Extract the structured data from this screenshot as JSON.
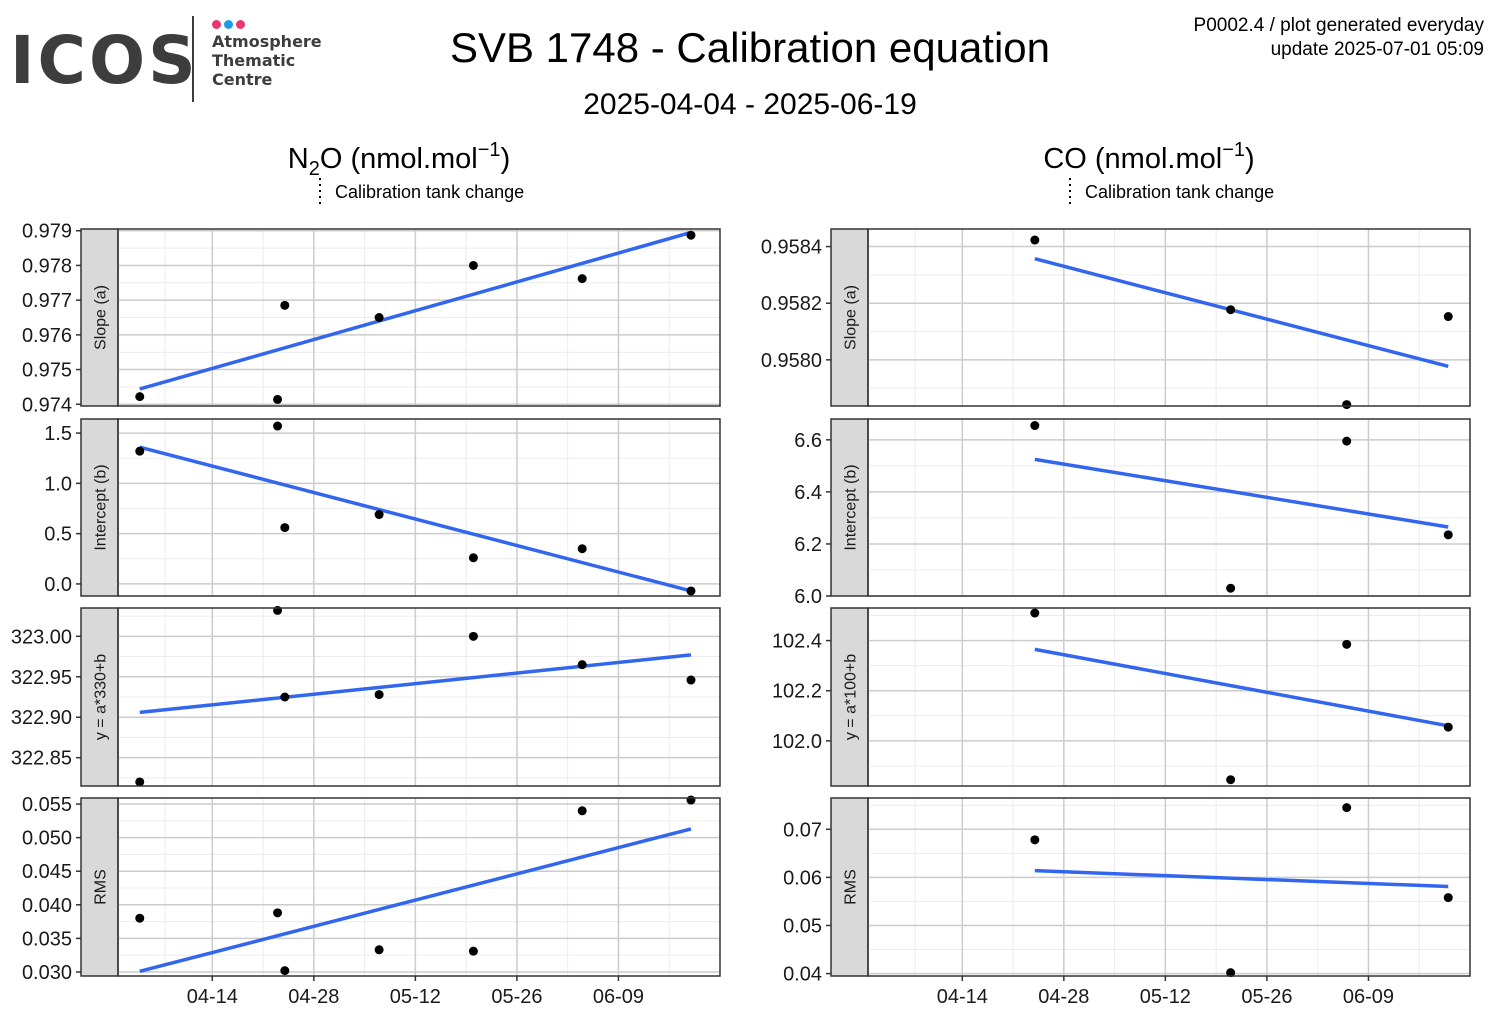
{
  "logo": {
    "wordmark": "ICOS",
    "lines": [
      "Atmosphere",
      "Thematic",
      "Centre"
    ],
    "dot_colors": [
      "#e8386d",
      "#1c9ce8",
      "#e8386d"
    ]
  },
  "header": {
    "title": "SVB 1748 - Calibration equation",
    "subtitle": "2025-04-04 - 2025-06-19",
    "meta_line1": "P0002.4 / plot generated everyday",
    "meta_line2": "update  2025-07-01 05:09"
  },
  "colors": {
    "fit_line": "#3366ee",
    "points": "#000000",
    "strip_bg": "#d9d9d9",
    "grid_major": "#cccccc",
    "grid_minor": "#ececec"
  },
  "chart_data": [
    {
      "type": "scatter",
      "column_title": "N2O (nmol.mol-1)",
      "column_title_parts": {
        "species": "N",
        "sub": "2",
        "rest": "O (nmol.mol",
        "sup": "−1",
        "close": ")"
      },
      "legend": "Calibration tank change",
      "x_axis": {
        "range": [
          "2025-04-01",
          "2025-06-23"
        ],
        "ticks": [
          "2025-04-14",
          "2025-04-28",
          "2025-05-12",
          "2025-05-26",
          "2025-06-09"
        ],
        "tick_labels": [
          "04-14",
          "04-28",
          "05-12",
          "05-26",
          "06-09"
        ]
      },
      "panels": [
        {
          "strip": "Slope (a)",
          "ylim": [
            0.97395,
            0.97905
          ],
          "yticks": [
            0.974,
            0.975,
            0.976,
            0.977,
            0.978,
            0.979
          ],
          "ytick_labels": [
            "0.974",
            "0.975",
            "0.976",
            "0.977",
            "0.978",
            "0.979"
          ],
          "points": [
            {
              "x": "2025-04-04",
              "y": 0.97422
            },
            {
              "x": "2025-04-23",
              "y": 0.97414
            },
            {
              "x": "2025-04-24",
              "y": 0.97685
            },
            {
              "x": "2025-05-07",
              "y": 0.9765
            },
            {
              "x": "2025-05-20",
              "y": 0.978
            },
            {
              "x": "2025-06-04",
              "y": 0.97762
            },
            {
              "x": "2025-06-19",
              "y": 0.97887
            }
          ],
          "fit": [
            {
              "x": "2025-04-04",
              "y": 0.97444
            },
            {
              "x": "2025-06-19",
              "y": 0.97895
            }
          ]
        },
        {
          "strip": "Intercept (b)",
          "ylim": [
            -0.12,
            1.64
          ],
          "yticks": [
            0.0,
            0.5,
            1.0,
            1.5
          ],
          "ytick_labels": [
            "0.0",
            "0.5",
            "1.0",
            "1.5"
          ],
          "points": [
            {
              "x": "2025-04-04",
              "y": 1.32
            },
            {
              "x": "2025-04-23",
              "y": 1.57
            },
            {
              "x": "2025-04-24",
              "y": 0.56
            },
            {
              "x": "2025-05-07",
              "y": 0.69
            },
            {
              "x": "2025-05-20",
              "y": 0.26
            },
            {
              "x": "2025-06-04",
              "y": 0.35
            },
            {
              "x": "2025-06-19",
              "y": -0.07
            }
          ],
          "fit": [
            {
              "x": "2025-04-04",
              "y": 1.36
            },
            {
              "x": "2025-06-19",
              "y": -0.07
            }
          ]
        },
        {
          "strip": "y = a*330+b",
          "ylim": [
            322.815,
            323.035
          ],
          "yticks": [
            322.85,
            322.9,
            322.95,
            323.0
          ],
          "ytick_labels": [
            "322.85",
            "322.90",
            "322.95",
            "323.00"
          ],
          "points": [
            {
              "x": "2025-04-04",
              "y": 322.82
            },
            {
              "x": "2025-04-23",
              "y": 323.032
            },
            {
              "x": "2025-04-24",
              "y": 322.925
            },
            {
              "x": "2025-05-07",
              "y": 322.928
            },
            {
              "x": "2025-05-20",
              "y": 323.0
            },
            {
              "x": "2025-06-04",
              "y": 322.965
            },
            {
              "x": "2025-06-19",
              "y": 322.946
            }
          ],
          "fit": [
            {
              "x": "2025-04-04",
              "y": 322.906
            },
            {
              "x": "2025-06-19",
              "y": 322.977
            }
          ]
        },
        {
          "strip": "RMS",
          "ylim": [
            0.0294,
            0.0559
          ],
          "yticks": [
            0.03,
            0.035,
            0.04,
            0.045,
            0.05,
            0.055
          ],
          "ytick_labels": [
            "0.030",
            "0.035",
            "0.040",
            "0.045",
            "0.050",
            "0.055"
          ],
          "points": [
            {
              "x": "2025-04-04",
              "y": 0.038
            },
            {
              "x": "2025-04-23",
              "y": 0.0388
            },
            {
              "x": "2025-04-24",
              "y": 0.0302
            },
            {
              "x": "2025-05-07",
              "y": 0.0333
            },
            {
              "x": "2025-05-20",
              "y": 0.0331
            },
            {
              "x": "2025-06-04",
              "y": 0.054
            },
            {
              "x": "2025-06-19",
              "y": 0.0556
            }
          ],
          "fit": [
            {
              "x": "2025-04-04",
              "y": 0.0301
            },
            {
              "x": "2025-06-19",
              "y": 0.0513
            }
          ]
        }
      ]
    },
    {
      "type": "scatter",
      "column_title": "CO (nmol.mol-1)",
      "column_title_parts": {
        "species": "CO",
        "sub": "",
        "rest": " (nmol.mol",
        "sup": "−1",
        "close": ")"
      },
      "legend": "Calibration tank change",
      "x_axis": {
        "range": [
          "2025-04-01",
          "2025-06-23"
        ],
        "ticks": [
          "2025-04-14",
          "2025-04-28",
          "2025-05-12",
          "2025-05-26",
          "2025-06-09"
        ],
        "tick_labels": [
          "04-14",
          "04-28",
          "05-12",
          "05-26",
          "06-09"
        ]
      },
      "panels": [
        {
          "strip": "Slope (a)",
          "ylim": [
            0.957837,
            0.958462
          ],
          "yticks": [
            0.958,
            0.9582,
            0.9584
          ],
          "ytick_labels": [
            "0.9580",
            "0.9582",
            "0.9584"
          ],
          "points": [
            {
              "x": "2025-04-24",
              "y": 0.958423
            },
            {
              "x": "2025-05-21",
              "y": 0.958177
            },
            {
              "x": "2025-06-06",
              "y": 0.957842
            },
            {
              "x": "2025-06-20",
              "y": 0.958153
            }
          ],
          "fit": [
            {
              "x": "2025-04-24",
              "y": 0.958357
            },
            {
              "x": "2025-06-20",
              "y": 0.957977
            }
          ]
        },
        {
          "strip": "Intercept (b)",
          "ylim": [
            6.0,
            6.68
          ],
          "yticks": [
            6.0,
            6.2,
            6.4,
            6.6
          ],
          "ytick_labels": [
            "6.0",
            "6.2",
            "6.4",
            "6.6"
          ],
          "points": [
            {
              "x": "2025-04-24",
              "y": 6.655
            },
            {
              "x": "2025-05-21",
              "y": 6.03
            },
            {
              "x": "2025-06-06",
              "y": 6.595
            },
            {
              "x": "2025-06-20",
              "y": 6.235
            }
          ],
          "fit": [
            {
              "x": "2025-04-24",
              "y": 6.525
            },
            {
              "x": "2025-06-20",
              "y": 6.265
            }
          ]
        },
        {
          "strip": "y = a*100+b",
          "ylim": [
            101.82,
            102.53
          ],
          "yticks": [
            102.0,
            102.2,
            102.4
          ],
          "ytick_labels": [
            "102.0",
            "102.2",
            "102.4"
          ],
          "points": [
            {
              "x": "2025-04-24",
              "y": 102.51
            },
            {
              "x": "2025-05-21",
              "y": 101.845
            },
            {
              "x": "2025-06-06",
              "y": 102.385
            },
            {
              "x": "2025-06-20",
              "y": 102.055
            }
          ],
          "fit": [
            {
              "x": "2025-04-24",
              "y": 102.365
            },
            {
              "x": "2025-06-20",
              "y": 102.06
            }
          ]
        },
        {
          "strip": "RMS",
          "ylim": [
            0.0395,
            0.0765
          ],
          "yticks": [
            0.04,
            0.05,
            0.06,
            0.07
          ],
          "ytick_labels": [
            "0.04",
            "0.05",
            "0.06",
            "0.07"
          ],
          "points": [
            {
              "x": "2025-04-24",
              "y": 0.0678
            },
            {
              "x": "2025-05-21",
              "y": 0.0402
            },
            {
              "x": "2025-06-06",
              "y": 0.0745
            },
            {
              "x": "2025-06-20",
              "y": 0.0558
            }
          ],
          "fit": [
            {
              "x": "2025-04-24",
              "y": 0.0614
            },
            {
              "x": "2025-06-20",
              "y": 0.0581
            }
          ]
        }
      ]
    }
  ]
}
